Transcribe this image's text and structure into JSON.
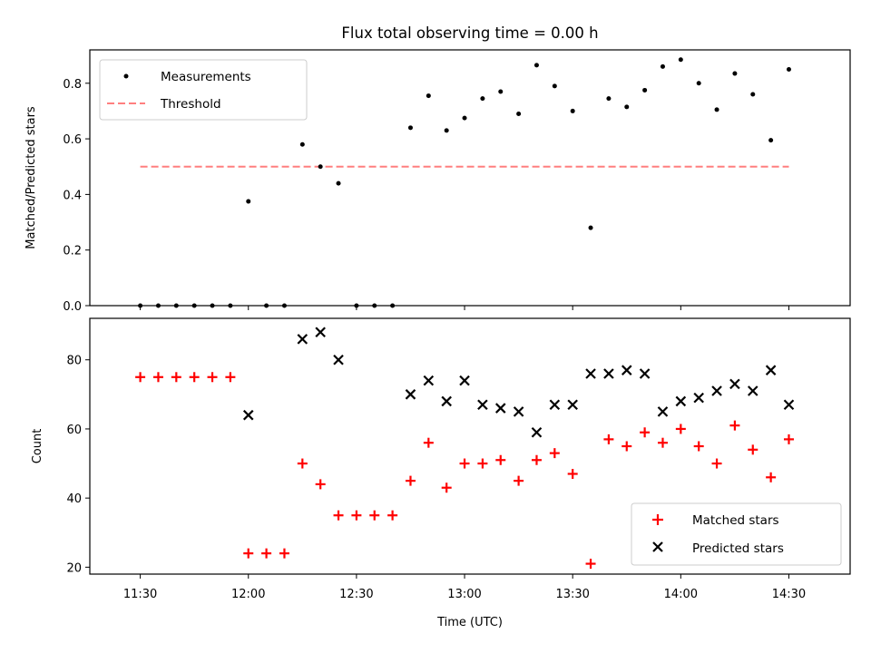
{
  "chart_data": [
    {
      "type": "scatter",
      "title": "Flux total observing time = 0.00 h",
      "xlabel": "",
      "ylabel": "Matched/Predicted stars",
      "xlim": [
        "11:16",
        "14:47"
      ],
      "ylim": [
        0,
        0.92
      ],
      "yticks": [
        "0.0",
        "0.2",
        "0.4",
        "0.6",
        "0.8"
      ],
      "legend_position": "top-left",
      "series": [
        {
          "name": "Measurements",
          "marker": "dot",
          "color": "#000000",
          "x": [
            "11:30",
            "11:35",
            "11:40",
            "11:45",
            "11:50",
            "11:55",
            "12:00",
            "12:05",
            "12:10",
            "12:15",
            "12:20",
            "12:25",
            "12:30",
            "12:35",
            "12:40",
            "12:45",
            "12:50",
            "12:55",
            "13:00",
            "13:05",
            "13:10",
            "13:15",
            "13:20",
            "13:25",
            "13:30",
            "13:35",
            "13:40",
            "13:45",
            "13:50",
            "13:55",
            "14:00",
            "14:05",
            "14:10",
            "14:15",
            "14:20",
            "14:25",
            "14:30"
          ],
          "y": [
            0,
            0,
            0,
            0,
            0,
            0,
            0.375,
            0,
            0,
            0.58,
            0.5,
            0.44,
            0,
            0,
            0,
            0.64,
            0.755,
            0.63,
            0.675,
            0.745,
            0.77,
            0.69,
            0.865,
            0.79,
            0.7,
            0.28,
            0.745,
            0.715,
            0.775,
            0.86,
            0.885,
            0.8,
            0.705,
            0.835,
            0.76,
            0.595,
            0.85
          ]
        },
        {
          "name": "Threshold",
          "style": "dashed",
          "color": "#ff7f7f",
          "x": [
            "11:30",
            "14:30"
          ],
          "y": [
            0.5,
            0.5
          ]
        }
      ]
    },
    {
      "type": "scatter",
      "xlabel": "Time (UTC)",
      "ylabel": "Count",
      "xlim": [
        "11:16",
        "14:47"
      ],
      "ylim": [
        18,
        92
      ],
      "yticks": [
        "20",
        "40",
        "60",
        "80"
      ],
      "xticks": [
        "11:30",
        "12:00",
        "12:30",
        "13:00",
        "13:30",
        "14:00",
        "14:30"
      ],
      "legend_position": "bottom-right",
      "series": [
        {
          "name": "Matched stars",
          "marker": "plus",
          "color": "#ff0000",
          "x": [
            "11:30",
            "11:35",
            "11:40",
            "11:45",
            "11:50",
            "11:55",
            "12:00",
            "12:05",
            "12:10",
            "12:15",
            "12:20",
            "12:25",
            "12:30",
            "12:35",
            "12:40",
            "12:45",
            "12:50",
            "12:55",
            "13:00",
            "13:05",
            "13:10",
            "13:15",
            "13:20",
            "13:25",
            "13:30",
            "13:35",
            "13:40",
            "13:45",
            "13:50",
            "13:55",
            "14:00",
            "14:05",
            "14:10",
            "14:15",
            "14:20",
            "14:25",
            "14:30"
          ],
          "y": [
            75,
            75,
            75,
            75,
            75,
            75,
            24,
            24,
            24,
            50,
            44,
            35,
            35,
            35,
            35,
            45,
            56,
            43,
            50,
            50,
            51,
            45,
            51,
            53,
            47,
            21,
            57,
            55,
            59,
            56,
            60,
            55,
            50,
            61,
            54,
            46,
            57
          ]
        },
        {
          "name": "Predicted stars",
          "marker": "x",
          "color": "#000000",
          "x": [
            "12:00",
            "12:15",
            "12:20",
            "12:25",
            "12:45",
            "12:50",
            "12:55",
            "13:00",
            "13:05",
            "13:10",
            "13:15",
            "13:20",
            "13:25",
            "13:30",
            "13:35",
            "13:40",
            "13:45",
            "13:50",
            "13:55",
            "14:00",
            "14:05",
            "14:10",
            "14:15",
            "14:20",
            "14:25",
            "14:30"
          ],
          "y": [
            64,
            86,
            88,
            80,
            70,
            74,
            68,
            74,
            67,
            66,
            65,
            59,
            67,
            67,
            76,
            76,
            77,
            76,
            65,
            68,
            69,
            71,
            73,
            71,
            77,
            67
          ]
        }
      ]
    }
  ]
}
